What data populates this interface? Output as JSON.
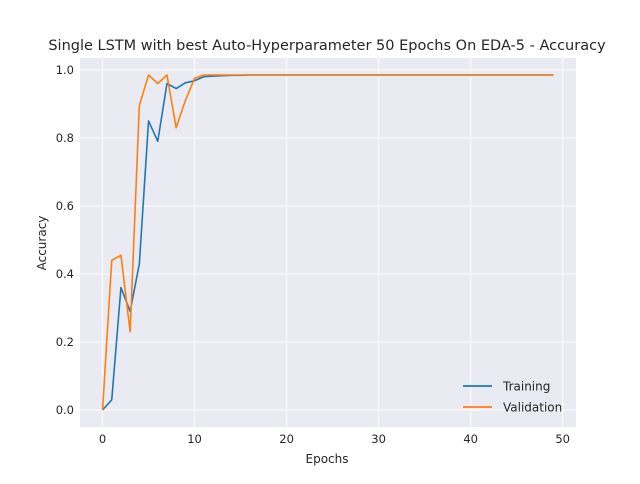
{
  "chart_data": {
    "type": "line",
    "title": "Single LSTM with best Auto-Hyperparameter 50 Epochs On EDA-5 - Accuracy",
    "xlabel": "Epochs",
    "ylabel": "Accuracy",
    "xlim": [
      -2.45,
      51.45
    ],
    "ylim": [
      -0.05,
      1.035
    ],
    "xticks": [
      0,
      10,
      20,
      30,
      40,
      50
    ],
    "xtick_labels": [
      "0",
      "10",
      "20",
      "30",
      "40",
      "50"
    ],
    "yticks": [
      0.0,
      0.2,
      0.4,
      0.6,
      0.8,
      1.0
    ],
    "ytick_labels": [
      "0.0",
      "0.2",
      "0.4",
      "0.6",
      "0.8",
      "1.0"
    ],
    "grid": true,
    "legend_position": "lower-right",
    "x": [
      0,
      1,
      2,
      3,
      4,
      5,
      6,
      7,
      8,
      9,
      10,
      11,
      12,
      13,
      14,
      15,
      16,
      17,
      18,
      19,
      20,
      21,
      22,
      23,
      24,
      25,
      26,
      27,
      28,
      29,
      30,
      31,
      32,
      33,
      34,
      35,
      36,
      37,
      38,
      39,
      40,
      41,
      42,
      43,
      44,
      45,
      46,
      47,
      48,
      49
    ],
    "series": [
      {
        "name": "Training",
        "color": "#1f77b4",
        "values": [
          0.0,
          0.03,
          0.36,
          0.29,
          0.43,
          0.85,
          0.79,
          0.96,
          0.945,
          0.962,
          0.968,
          0.98,
          0.982,
          0.983,
          0.984,
          0.984,
          0.985,
          0.985,
          0.985,
          0.985,
          0.985,
          0.985,
          0.985,
          0.985,
          0.985,
          0.985,
          0.985,
          0.985,
          0.985,
          0.985,
          0.985,
          0.985,
          0.985,
          0.985,
          0.985,
          0.985,
          0.985,
          0.985,
          0.985,
          0.985,
          0.985,
          0.985,
          0.985,
          0.985,
          0.985,
          0.985,
          0.985,
          0.985,
          0.985,
          0.985
        ]
      },
      {
        "name": "Validation",
        "color": "#ff7f0e",
        "values": [
          0.0,
          0.44,
          0.455,
          0.23,
          0.895,
          0.985,
          0.96,
          0.985,
          0.83,
          0.91,
          0.975,
          0.985,
          0.985,
          0.985,
          0.985,
          0.985,
          0.985,
          0.985,
          0.985,
          0.985,
          0.985,
          0.985,
          0.985,
          0.985,
          0.985,
          0.985,
          0.985,
          0.985,
          0.985,
          0.985,
          0.985,
          0.985,
          0.985,
          0.985,
          0.985,
          0.985,
          0.985,
          0.985,
          0.985,
          0.985,
          0.985,
          0.985,
          0.985,
          0.985,
          0.985,
          0.985,
          0.985,
          0.985,
          0.985,
          0.985
        ]
      }
    ]
  }
}
